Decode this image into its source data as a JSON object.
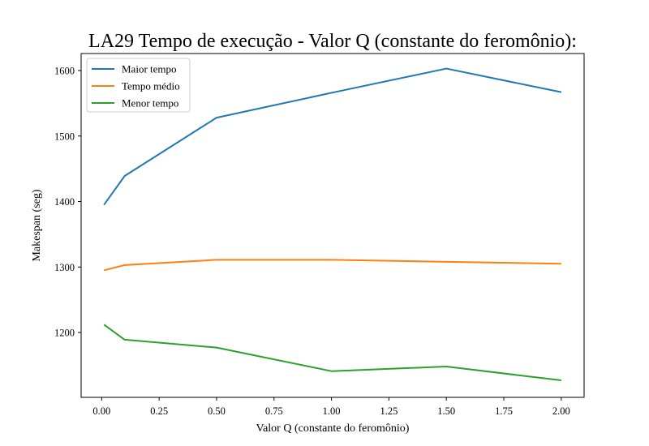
{
  "chart_data": {
    "type": "line",
    "title": "LA29 Tempo de execução - Valor Q (constante do feromônio):",
    "xlabel": "Valor Q (constante do feromônio)",
    "ylabel": "Makespan (seg)",
    "x": [
      0.01,
      0.1,
      0.5,
      1.0,
      1.5,
      2.0
    ],
    "xlim": [
      -0.0895,
      2.0995
    ],
    "ylim": [
      1101,
      1626
    ],
    "xticks": [
      0.0,
      0.25,
      0.5,
      0.75,
      1.0,
      1.25,
      1.5,
      1.75,
      2.0
    ],
    "xtick_labels": [
      "0.00",
      "0.25",
      "0.50",
      "0.75",
      "1.00",
      "1.25",
      "1.50",
      "1.75",
      "2.00"
    ],
    "yticks": [
      1200,
      1300,
      1400,
      1500,
      1600
    ],
    "ytick_labels": [
      "1200",
      "1300",
      "1400",
      "1500",
      "1600"
    ],
    "grid": false,
    "legend_position": "top-left",
    "series": [
      {
        "name": "Maior tempo",
        "color": "#1f77b4",
        "values": [
          1395,
          1439,
          1528,
          1566,
          1603,
          1567
        ]
      },
      {
        "name": "Tempo médio",
        "color": "#ff7f0e",
        "values": [
          1295,
          1303,
          1311,
          1311,
          1308,
          1305
        ]
      },
      {
        "name": "Menor tempo",
        "color": "#2ca02c",
        "values": [
          1212,
          1189,
          1177,
          1141,
          1148,
          1127
        ]
      }
    ]
  }
}
